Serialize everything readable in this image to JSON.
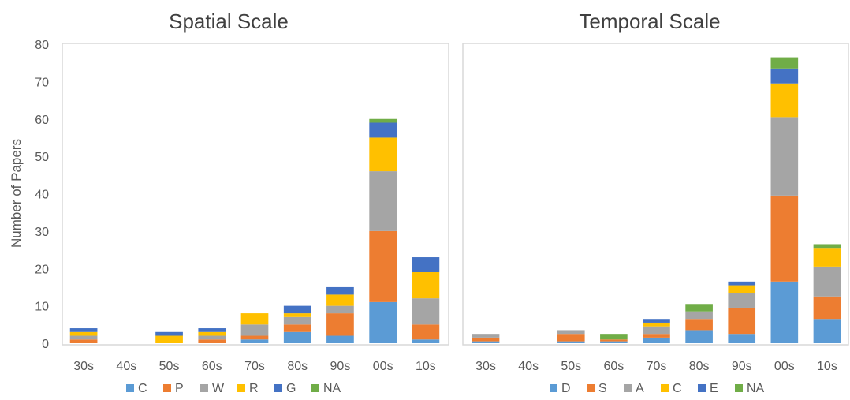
{
  "shared_ylabel": "Number of Papers",
  "chart_data": [
    {
      "type": "bar",
      "stacked": true,
      "title": "Spatial Scale",
      "ylabel": "Number of Papers",
      "ylim": [
        0,
        80
      ],
      "yticks": [
        0,
        10,
        20,
        30,
        40,
        50,
        60,
        70,
        80
      ],
      "categories": [
        "30s",
        "40s",
        "50s",
        "60s",
        "70s",
        "80s",
        "90s",
        "00s",
        "10s"
      ],
      "legend_position": "bottom",
      "series": [
        {
          "name": "C",
          "color": "#5B9BD5",
          "values": [
            0,
            0,
            0,
            0,
            1,
            3,
            2,
            11,
            1
          ]
        },
        {
          "name": "P",
          "color": "#ED7D31",
          "values": [
            1,
            0,
            0,
            1,
            1,
            2,
            6,
            19,
            4
          ]
        },
        {
          "name": "W",
          "color": "#A5A5A5",
          "values": [
            1,
            0,
            0,
            1,
            3,
            2,
            2,
            16,
            7
          ]
        },
        {
          "name": "R",
          "color": "#FFC000",
          "values": [
            1,
            0,
            2,
            1,
            3,
            1,
            3,
            9,
            7
          ]
        },
        {
          "name": "G",
          "color": "#4472C4",
          "values": [
            1,
            0,
            1,
            1,
            0,
            2,
            2,
            4,
            4
          ]
        },
        {
          "name": "NA",
          "color": "#70AD47",
          "values": [
            0,
            0,
            0,
            0,
            0,
            0,
            0,
            1,
            0
          ]
        }
      ]
    },
    {
      "type": "bar",
      "stacked": true,
      "title": "Temporal Scale",
      "ylim": [
        0,
        80
      ],
      "categories": [
        "30s",
        "40s",
        "50s",
        "60s",
        "70s",
        "80s",
        "90s",
        "00s",
        "10s"
      ],
      "legend_position": "bottom",
      "series": [
        {
          "name": "D",
          "color": "#5B9BD5",
          "values": [
            0.5,
            0,
            0.5,
            0.5,
            1.5,
            3.5,
            2.5,
            16.5,
            6.5
          ]
        },
        {
          "name": "S",
          "color": "#ED7D31",
          "values": [
            1,
            0,
            2,
            0.5,
            1,
            3,
            7,
            23,
            6
          ]
        },
        {
          "name": "A",
          "color": "#A5A5A5",
          "values": [
            1,
            0,
            1,
            0,
            2,
            2,
            4,
            21,
            8
          ]
        },
        {
          "name": "C",
          "color": "#FFC000",
          "values": [
            0,
            0,
            0,
            0,
            1,
            0,
            2,
            9,
            5
          ]
        },
        {
          "name": "E",
          "color": "#4472C4",
          "values": [
            0,
            0,
            0,
            0,
            1,
            0,
            1,
            4,
            0
          ]
        },
        {
          "name": "NA",
          "color": "#70AD47",
          "values": [
            0,
            0,
            0,
            1.5,
            0,
            2,
            0,
            3,
            1
          ]
        }
      ]
    }
  ]
}
